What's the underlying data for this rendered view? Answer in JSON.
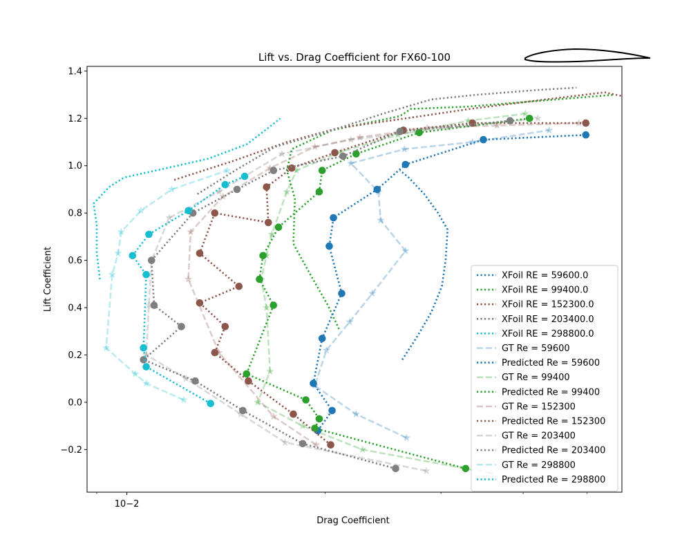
{
  "chart_data": {
    "type": "line",
    "title": "Lift vs. Drag Coefficient for FX60-100",
    "xlabel": "Drag Coefficient",
    "ylabel": "Lift Coefficient",
    "xscale": "log",
    "xlim": [
      0.0087,
      0.0565
    ],
    "ylim": [
      -0.38,
      1.42
    ],
    "x_major_ticks": [
      0.01
    ],
    "x_tick_labels": [
      "10−2"
    ],
    "x_minor_ticks": [
      0.009,
      0.02,
      0.03,
      0.04,
      0.05
    ],
    "y_ticks": [
      -0.2,
      0.0,
      0.2,
      0.4,
      0.6,
      0.8,
      1.0,
      1.2,
      1.4
    ],
    "y_tick_labels": [
      "−0.2",
      "0.0",
      "0.2",
      "0.4",
      "0.6",
      "0.8",
      "1.0",
      "1.2",
      "1.4"
    ],
    "grid": false,
    "legend_position": "lower-right",
    "airfoil_inset": true,
    "colors": {
      "re59600": "#1f77b4",
      "re99400": "#2ca02c",
      "re152300": "#8c564b",
      "re203400": "#7f7f7f",
      "re298800": "#17becf"
    },
    "series": [
      {
        "name": "XFoil RE = 59600.0",
        "kind": "xfoil",
        "color": "#1f77b4",
        "points": [
          [
            0.0262,
            0.18
          ],
          [
            0.0275,
            0.27
          ],
          [
            0.029,
            0.38
          ],
          [
            0.0301,
            0.49
          ],
          [
            0.0305,
            0.6
          ],
          [
            0.0307,
            0.73
          ],
          [
            0.0297,
            0.8
          ],
          [
            0.0283,
            0.88
          ],
          [
            0.0268,
            0.95
          ],
          [
            0.026,
            0.98
          ]
        ]
      },
      {
        "name": "XFoil RE = 99400.0",
        "kind": "xfoil",
        "color": "#2ca02c",
        "points": [
          [
            0.021,
            0.31
          ],
          [
            0.0202,
            0.41
          ],
          [
            0.019,
            0.54
          ],
          [
            0.0179,
            0.67
          ],
          [
            0.018,
            0.86
          ],
          [
            0.0175,
            0.98
          ],
          [
            0.0178,
            1.07
          ],
          [
            0.0205,
            1.15
          ],
          [
            0.026,
            1.21
          ],
          [
            0.027,
            1.24
          ],
          [
            0.033,
            1.25
          ],
          [
            0.055,
            1.3
          ]
        ]
      },
      {
        "name": "XFoil RE = 152300.0",
        "kind": "xfoil",
        "color": "#8c564b",
        "points": [
          [
            0.0118,
            0.94
          ],
          [
            0.0145,
            1.02
          ],
          [
            0.0175,
            1.1
          ],
          [
            0.021,
            1.16
          ],
          [
            0.0265,
            1.2
          ],
          [
            0.0332,
            1.24
          ],
          [
            0.0432,
            1.28
          ],
          [
            0.0532,
            1.31
          ],
          [
            0.0586,
            1.285
          ]
        ]
      },
      {
        "name": "XFoil RE = 203400.0",
        "kind": "xfoil",
        "color": "#7f7f7f",
        "points": [
          [
            0.0128,
            0.88
          ],
          [
            0.0146,
            0.98
          ],
          [
            0.0168,
            1.08
          ],
          [
            0.0205,
            1.15
          ],
          [
            0.0245,
            1.22
          ],
          [
            0.029,
            1.28
          ],
          [
            0.034,
            1.3
          ],
          [
            0.042,
            1.32
          ],
          [
            0.0482,
            1.33
          ]
        ]
      },
      {
        "name": "XFoil RE = 298800.0",
        "kind": "xfoil",
        "color": "#17becf",
        "points": [
          [
            0.0091,
            0.52
          ],
          [
            0.009,
            0.63
          ],
          [
            0.009,
            0.75
          ],
          [
            0.0089,
            0.84
          ],
          [
            0.0094,
            0.91
          ],
          [
            0.0099,
            0.95
          ],
          [
            0.0115,
            0.99
          ],
          [
            0.0133,
            1.03
          ],
          [
            0.0152,
            1.09
          ],
          [
            0.0164,
            1.16
          ],
          [
            0.0171,
            1.2
          ]
        ]
      },
      {
        "name": "GT Re = 59600",
        "kind": "gt",
        "color": "#1f77b4",
        "points": [
          [
            0.0266,
            -0.15
          ],
          [
            0.0223,
            -0.05
          ],
          [
            0.0193,
            0.07
          ],
          [
            0.0201,
            0.22
          ],
          [
            0.0218,
            0.34
          ],
          [
            0.0236,
            0.46
          ],
          [
            0.0265,
            0.64
          ],
          [
            0.0243,
            0.77
          ],
          [
            0.0241,
            0.89
          ],
          [
            0.0219,
            1.01
          ],
          [
            0.0264,
            1.07
          ],
          [
            0.0335,
            1.1
          ],
          [
            0.0438,
            1.15
          ]
        ]
      },
      {
        "name": "Predicted Re = 59600",
        "kind": "pred",
        "color": "#1f77b4",
        "points": [
          [
            0.0195,
            -0.12
          ],
          [
            0.0205,
            -0.035
          ],
          [
            0.0192,
            0.08
          ],
          [
            0.0198,
            0.27
          ],
          [
            0.0212,
            0.46
          ],
          [
            0.0203,
            0.66
          ],
          [
            0.0206,
            0.78
          ],
          [
            0.024,
            0.9
          ],
          [
            0.0265,
            1.005
          ],
          [
            0.0348,
            1.11
          ],
          [
            0.0498,
            1.13
          ]
        ]
      },
      {
        "name": "GT Re = 99400",
        "kind": "gt",
        "color": "#2ca02c",
        "points": [
          [
            0.0358,
            -0.3
          ],
          [
            0.0228,
            -0.2
          ],
          [
            0.0185,
            -0.1
          ],
          [
            0.0158,
            0.0
          ],
          [
            0.0165,
            0.13
          ],
          [
            0.0163,
            0.4
          ],
          [
            0.016,
            0.52
          ],
          [
            0.0163,
            0.62
          ],
          [
            0.0166,
            0.71
          ],
          [
            0.0175,
            0.89
          ],
          [
            0.0181,
            0.98
          ],
          [
            0.0212,
            1.06
          ],
          [
            0.0258,
            1.13
          ],
          [
            0.033,
            1.19
          ],
          [
            0.0403,
            1.22
          ]
        ]
      },
      {
        "name": "Predicted Re = 99400",
        "kind": "pred",
        "color": "#2ca02c",
        "points": [
          [
            0.0327,
            -0.28
          ],
          [
            0.0193,
            -0.11
          ],
          [
            0.0196,
            -0.07
          ],
          [
            0.0187,
            0.01
          ],
          [
            0.0152,
            0.12
          ],
          [
            0.0167,
            0.41
          ],
          [
            0.0159,
            0.52
          ],
          [
            0.0161,
            0.62
          ],
          [
            0.017,
            0.74
          ],
          [
            0.0196,
            0.89
          ],
          [
            0.0198,
            0.98
          ],
          [
            0.0223,
            1.05
          ],
          [
            0.0278,
            1.14
          ],
          [
            0.0409,
            1.2
          ]
        ]
      },
      {
        "name": "GT Re = 152300",
        "kind": "gt",
        "color": "#8c564b",
        "points": [
          [
            0.0194,
            -0.18
          ],
          [
            0.0167,
            -0.06
          ],
          [
            0.0138,
            0.21
          ],
          [
            0.0124,
            0.52
          ],
          [
            0.0125,
            0.72
          ],
          [
            0.014,
            0.87
          ],
          [
            0.0165,
            0.99
          ],
          [
            0.0193,
            1.08
          ],
          [
            0.0226,
            1.12
          ],
          [
            0.0286,
            1.16
          ],
          [
            0.0365,
            1.17
          ],
          [
            0.0486,
            1.18
          ]
        ]
      },
      {
        "name": "Predicted Re = 152300",
        "kind": "pred",
        "color": "#8c564b",
        "points": [
          [
            0.0204,
            -0.18
          ],
          [
            0.0179,
            -0.05
          ],
          [
            0.0153,
            0.09
          ],
          [
            0.0136,
            0.21
          ],
          [
            0.0141,
            0.32
          ],
          [
            0.0129,
            0.42
          ],
          [
            0.0148,
            0.49
          ],
          [
            0.0129,
            0.63
          ],
          [
            0.0136,
            0.8
          ],
          [
            0.0164,
            0.76
          ],
          [
            0.0163,
            0.91
          ],
          [
            0.0178,
            0.99
          ],
          [
            0.0207,
            1.055
          ],
          [
            0.0263,
            1.15
          ],
          [
            0.0335,
            1.18
          ],
          [
            0.0498,
            1.18
          ]
        ]
      },
      {
        "name": "GT Re = 203400",
        "kind": "gt",
        "color": "#7f7f7f",
        "points": [
          [
            0.0285,
            -0.29
          ],
          [
            0.0174,
            -0.17
          ],
          [
            0.0149,
            -0.05
          ],
          [
            0.0123,
            0.1
          ],
          [
            0.0107,
            0.2
          ],
          [
            0.0108,
            0.41
          ],
          [
            0.0109,
            0.6
          ],
          [
            0.0116,
            0.78
          ],
          [
            0.0138,
            0.89
          ],
          [
            0.0172,
            1.05
          ],
          [
            0.0219,
            1.11
          ],
          [
            0.0308,
            1.16
          ],
          [
            0.0421,
            1.2
          ]
        ]
      },
      {
        "name": "Predicted Re = 203400",
        "kind": "pred",
        "color": "#7f7f7f",
        "points": [
          [
            0.0256,
            -0.28
          ],
          [
            0.0185,
            -0.175
          ],
          [
            0.015,
            -0.035
          ],
          [
            0.0127,
            0.09
          ],
          [
            0.0106,
            0.18
          ],
          [
            0.0121,
            0.32
          ],
          [
            0.011,
            0.41
          ],
          [
            0.0109,
            0.6
          ],
          [
            0.0126,
            0.8
          ],
          [
            0.0147,
            0.9
          ],
          [
            0.0167,
            0.98
          ],
          [
            0.0213,
            1.04
          ],
          [
            0.026,
            1.145
          ],
          [
            0.0382,
            1.19
          ]
        ]
      },
      {
        "name": "GT Re = 298800",
        "kind": "gt",
        "color": "#17becf",
        "points": [
          [
            0.0122,
            0.01
          ],
          [
            0.0107,
            0.08
          ],
          [
            0.0103,
            0.12
          ],
          [
            0.0093,
            0.23
          ],
          [
            0.0095,
            0.54
          ],
          [
            0.0097,
            0.63
          ],
          [
            0.0098,
            0.72
          ],
          [
            0.0105,
            0.81
          ],
          [
            0.0117,
            0.9
          ],
          [
            0.0142,
            0.98
          ]
        ]
      },
      {
        "name": "Predicted Re = 298800",
        "kind": "pred",
        "color": "#17becf",
        "points": [
          [
            0.0134,
            -0.005
          ],
          [
            0.0107,
            0.15
          ],
          [
            0.0106,
            0.23
          ],
          [
            0.0107,
            0.54
          ],
          [
            0.0102,
            0.62
          ],
          [
            0.0108,
            0.71
          ],
          [
            0.0124,
            0.81
          ],
          [
            0.0141,
            0.92
          ],
          [
            0.0151,
            0.955
          ]
        ]
      }
    ]
  }
}
